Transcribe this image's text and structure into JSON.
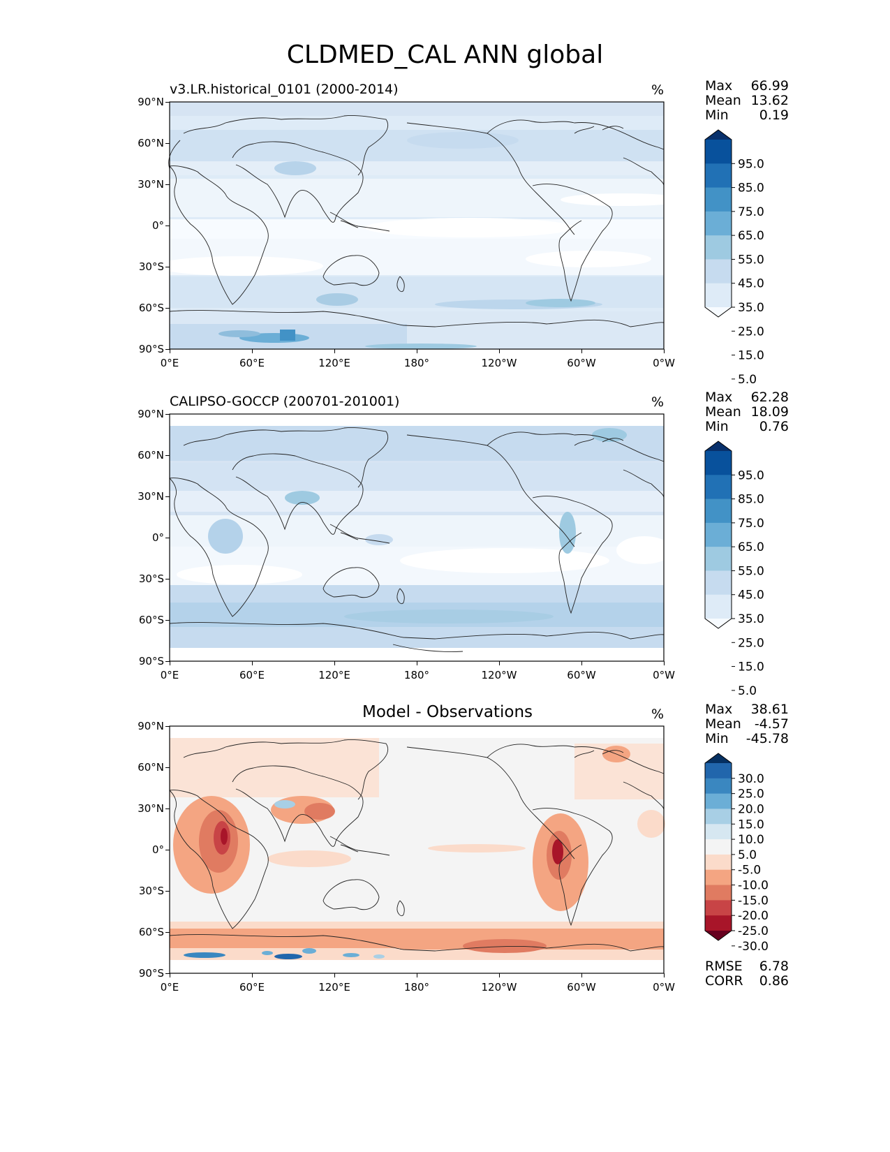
{
  "figure_title": "CLDMED_CAL ANN global",
  "x_ticks": [
    "0°E",
    "60°E",
    "120°E",
    "180°",
    "120°W",
    "60°W",
    "0°W"
  ],
  "y_ticks": [
    "90°N",
    "60°N",
    "30°N",
    "0°",
    "30°S",
    "60°S",
    "90°S"
  ],
  "chart_data": [
    {
      "type": "heatmap",
      "panel": "test",
      "title": "v3.LR.historical_0101 (2000-2014)",
      "units": "%",
      "stats": {
        "max_label": "Max",
        "max": "66.99",
        "mean_label": "Mean",
        "mean": "13.62",
        "min_label": "Min",
        "min": "0.19"
      },
      "colorbar": {
        "levels": [
          "95.0",
          "85.0",
          "75.0",
          "65.0",
          "55.0",
          "45.0",
          "35.0",
          "25.0",
          "15.0",
          "5.0"
        ],
        "colors": [
          "#08306b",
          "#08519c",
          "#2171b5",
          "#4292c6",
          "#6baed6",
          "#9ecae1",
          "#c6dbef",
          "#deebf7",
          "#f7fbff"
        ],
        "extend": "both"
      },
      "x_range": [
        0,
        360
      ],
      "y_range": [
        -90,
        90
      ]
    },
    {
      "type": "heatmap",
      "panel": "reference",
      "title": "CALIPSO-GOCCP (200701-201001)",
      "units": "%",
      "stats": {
        "max_label": "Max",
        "max": "62.28",
        "mean_label": "Mean",
        "mean": "18.09",
        "min_label": "Min",
        "min": "0.76"
      },
      "colorbar": {
        "levels": [
          "95.0",
          "85.0",
          "75.0",
          "65.0",
          "55.0",
          "45.0",
          "35.0",
          "25.0",
          "15.0",
          "5.0"
        ],
        "colors": [
          "#08306b",
          "#08519c",
          "#2171b5",
          "#4292c6",
          "#6baed6",
          "#9ecae1",
          "#c6dbef",
          "#deebf7",
          "#f7fbff"
        ],
        "extend": "both"
      },
      "x_range": [
        0,
        360
      ],
      "y_range": [
        -90,
        90
      ]
    },
    {
      "type": "heatmap",
      "panel": "difference",
      "title": "Model - Observations",
      "units": "%",
      "stats": {
        "max_label": "Max",
        "max": "38.61",
        "mean_label": "Mean",
        "mean": "-4.57",
        "min_label": "Min",
        "min": "-45.78"
      },
      "extra_stats": {
        "rmse_label": "RMSE",
        "rmse": "6.78",
        "corr_label": "CORR",
        "corr": "0.86"
      },
      "colorbar": {
        "levels": [
          "30.0",
          "25.0",
          "20.0",
          "15.0",
          "10.0",
          "5.0",
          "-5.0",
          "-10.0",
          "-15.0",
          "-20.0",
          "-25.0",
          "-30.0"
        ],
        "colors": [
          "#053061",
          "#2166ac",
          "#3a87c0",
          "#6baed6",
          "#a8cfe5",
          "#d6e7f1",
          "#f4f4f4",
          "#fbdbca",
          "#f4a582",
          "#e07b61",
          "#c84446",
          "#a81529",
          "#67001f"
        ],
        "extend": "both"
      },
      "x_range": [
        0,
        360
      ],
      "y_range": [
        -90,
        90
      ]
    }
  ]
}
